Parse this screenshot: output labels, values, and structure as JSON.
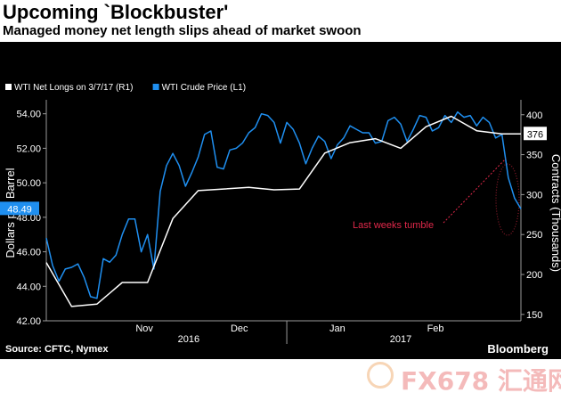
{
  "title": "Upcoming `Blockbuster'",
  "subtitle": "Managed money net length slips ahead of market swoon",
  "source": "Source: CFTC, Nymex",
  "brand": "Bloomberg",
  "watermark": {
    "text": "FX678 汇通网"
  },
  "chart_data": {
    "type": "line",
    "legend": [
      {
        "label": "WTI Net Longs on 3/7/17 (R1)",
        "color": "#ffffff"
      },
      {
        "label": "WTI Crude Price (L1)",
        "color": "#1f8ff0"
      }
    ],
    "ylabel_left": "Dollars per Barrel",
    "ylabel_right": "Contracts (Thousands)",
    "y_left": {
      "min": 42,
      "max": 54.5,
      "ticks": [
        "54.00",
        "52.00",
        "50.00",
        "48.00",
        "46.00",
        "44.00",
        "42.00"
      ],
      "tick_values": [
        54,
        52,
        50,
        48,
        46,
        44,
        42
      ]
    },
    "y_right": {
      "min": 142,
      "max": 412,
      "ticks": [
        "400",
        "350",
        "300",
        "250",
        "200",
        "150"
      ],
      "tick_values": [
        400,
        350,
        300,
        250,
        200,
        150
      ]
    },
    "x_labels": [
      {
        "label": "Nov",
        "day": 31
      },
      {
        "label": "Dec",
        "day": 61
      },
      {
        "label": "Jan",
        "day": 92
      },
      {
        "label": "Feb",
        "day": 123
      }
    ],
    "year_labels": [
      {
        "label": "2016",
        "day": 45
      },
      {
        "label": "2017",
        "day": 112
      }
    ],
    "year_divider_day": 76,
    "day_range": [
      0,
      150
    ],
    "series": [
      {
        "name": "WTI Crude Price (L1)",
        "axis": "left",
        "color": "#1f8ff0",
        "x": [
          0,
          2,
          4,
          6,
          8,
          10,
          12,
          14,
          16,
          18,
          20,
          22,
          24,
          26,
          28,
          30,
          32,
          34,
          36,
          38,
          40,
          42,
          44,
          46,
          48,
          50,
          52,
          54,
          56,
          58,
          60,
          62,
          64,
          66,
          68,
          70,
          72,
          74,
          76,
          78,
          80,
          82,
          84,
          86,
          88,
          90,
          92,
          94,
          96,
          98,
          100,
          102,
          104,
          106,
          108,
          110,
          112,
          114,
          116,
          118,
          120,
          122,
          124,
          126,
          128,
          130,
          132,
          134,
          136,
          138,
          140,
          142,
          144,
          146,
          148,
          150
        ],
        "values": [
          46.8,
          45.2,
          44.3,
          45.0,
          45.1,
          45.3,
          44.5,
          43.4,
          43.3,
          45.6,
          45.4,
          45.8,
          47.0,
          47.9,
          47.9,
          46.0,
          47.0,
          45.0,
          49.5,
          51.0,
          51.7,
          51.0,
          49.8,
          50.6,
          51.5,
          52.8,
          53.0,
          50.9,
          50.8,
          51.9,
          52.0,
          52.3,
          52.9,
          53.2,
          54.0,
          53.9,
          53.5,
          52.3,
          53.5,
          53.1,
          52.3,
          51.1,
          52.0,
          52.7,
          52.4,
          51.4,
          52.2,
          52.6,
          53.3,
          53.1,
          52.9,
          52.9,
          52.3,
          52.4,
          53.6,
          53.8,
          53.4,
          52.4,
          53.1,
          53.9,
          53.8,
          53.0,
          53.2,
          53.9,
          53.5,
          54.1,
          53.8,
          53.9,
          53.3,
          53.8,
          53.5,
          52.6,
          52.8,
          50.3,
          49.1,
          48.49
        ]
      },
      {
        "name": "WTI Net Longs on 3/7/17 (R1)",
        "axis": "right",
        "color": "#ffffff",
        "x": [
          0,
          8,
          16,
          24,
          32,
          40,
          48,
          56,
          64,
          72,
          80,
          88,
          96,
          104,
          112,
          120,
          128,
          136,
          144,
          150
        ],
        "values": [
          215,
          160,
          163,
          190,
          190,
          270,
          305,
          307,
          309,
          306,
          307,
          352,
          365,
          370,
          358,
          385,
          398,
          380,
          376,
          376
        ]
      }
    ],
    "annotations": [
      {
        "text": "Last weeks tumble",
        "color": "#e0284a"
      },
      {
        "text": "376",
        "type": "value-badge",
        "axis": "right",
        "value": 376
      },
      {
        "text": "48.49",
        "type": "value-badge",
        "axis": "left",
        "value": 48.49
      }
    ]
  }
}
